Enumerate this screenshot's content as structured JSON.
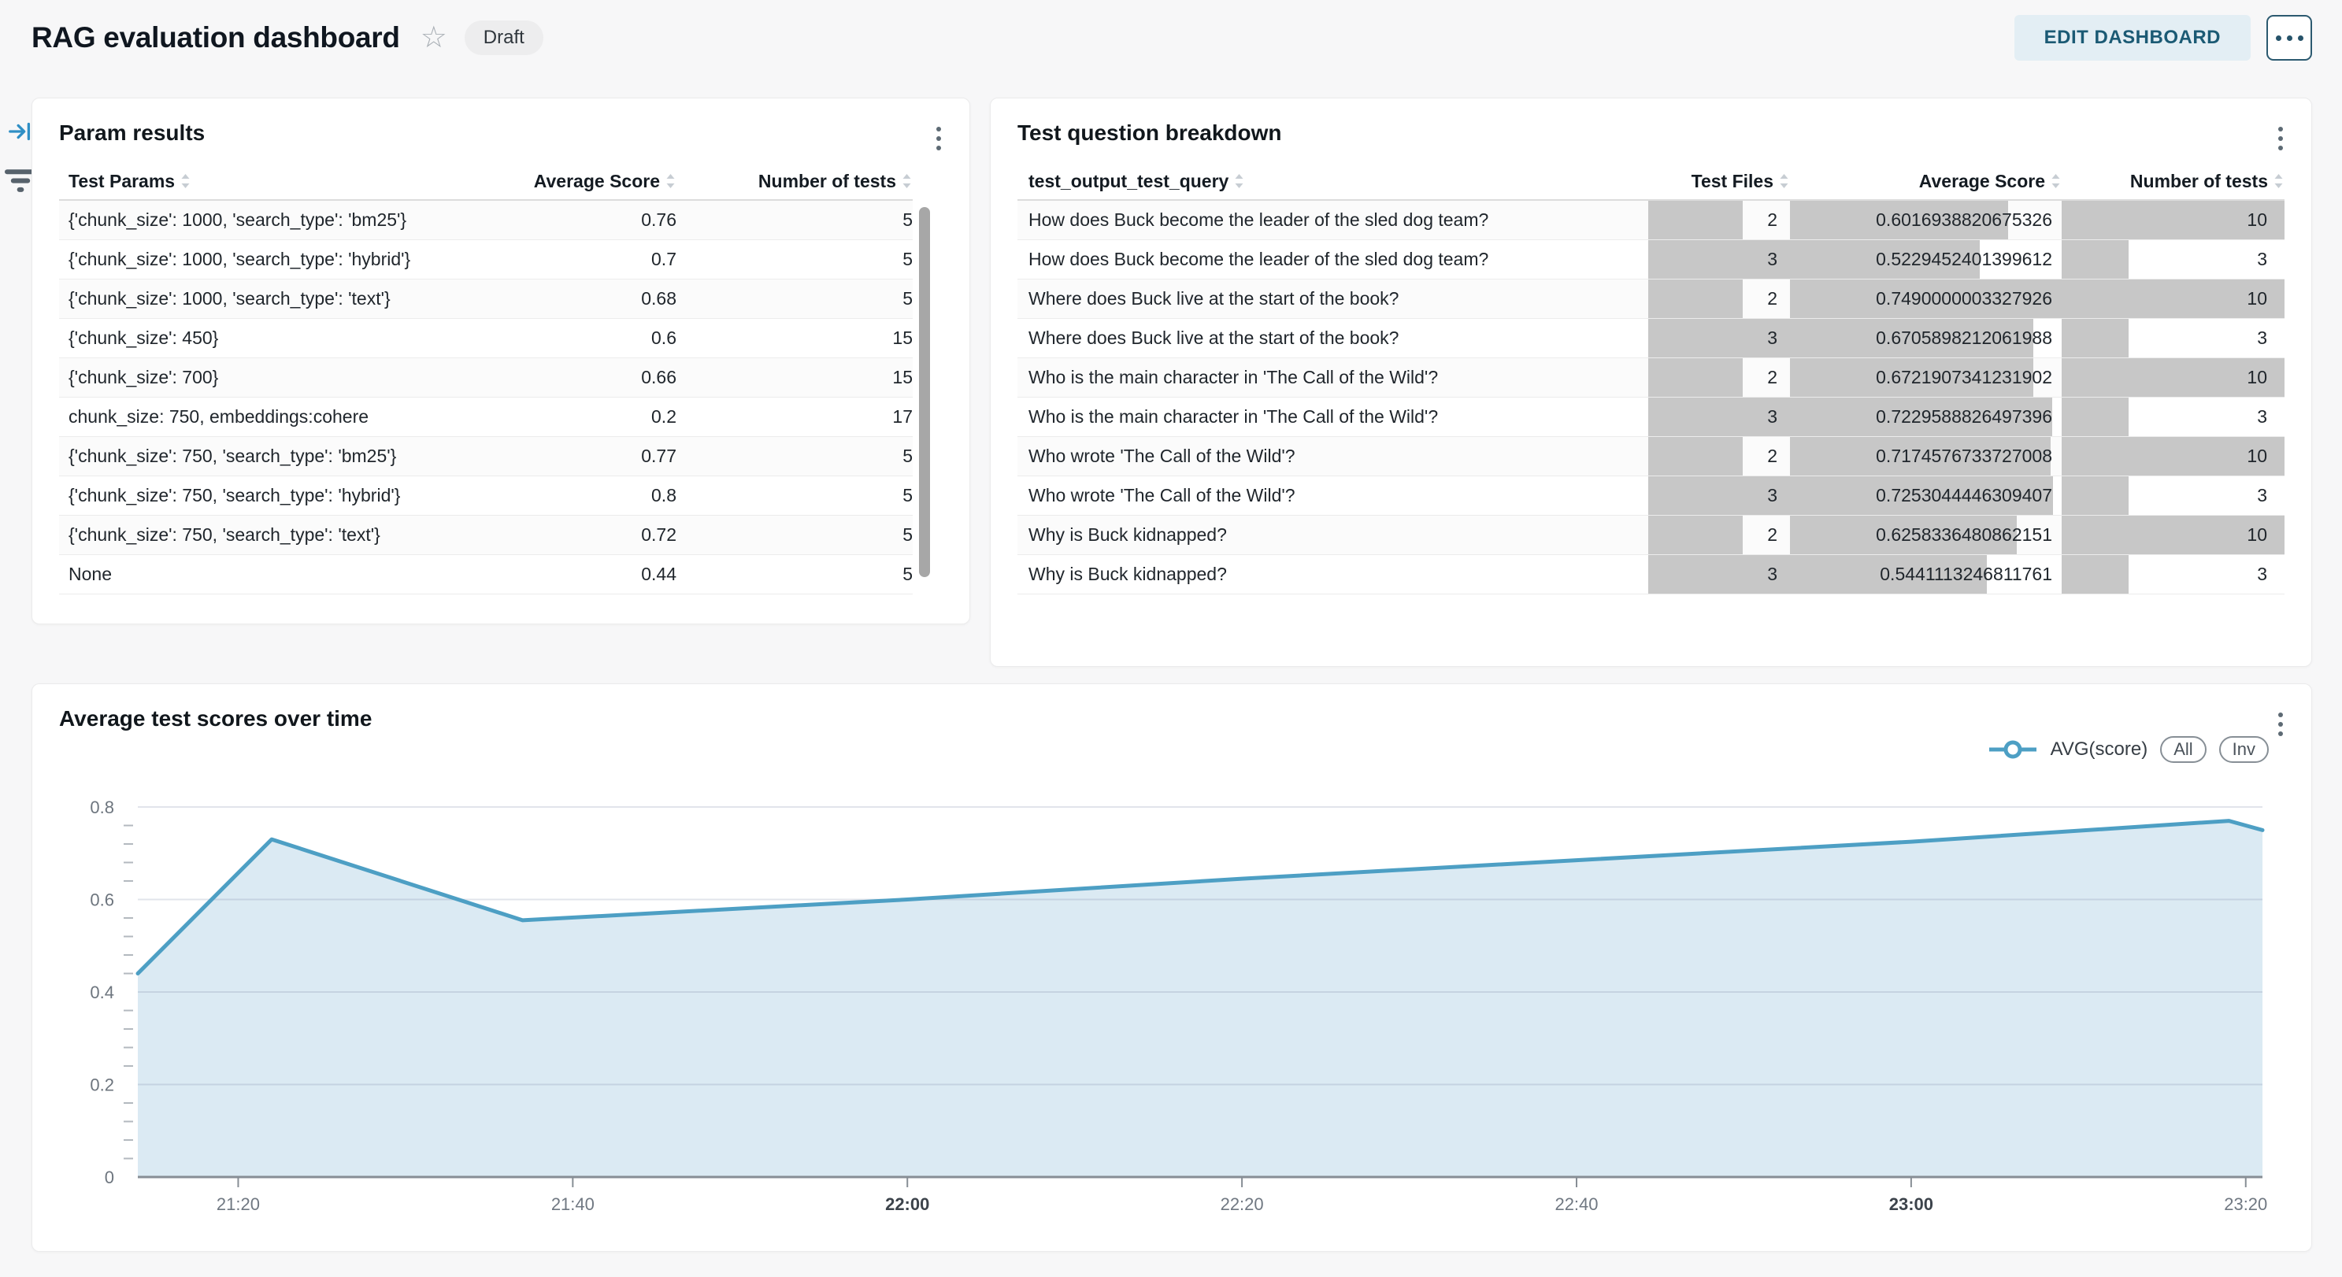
{
  "header": {
    "title": "RAG evaluation dashboard",
    "status_badge": "Draft",
    "edit_button_label": "EDIT DASHBOARD"
  },
  "icons": {
    "favorite": "star-outline-icon",
    "more": "horizontal-ellipsis-icon",
    "card_menu": "kebab-menu-icon",
    "rail_top": "collapse-panel-arrow-icon",
    "rail_bottom": "filter-icon",
    "column_sort": "sort-arrows-icon",
    "legend_marker": "line-with-circle-marker"
  },
  "colors": {
    "edit_button_bg": "#e3eef4",
    "edit_button_text": "#1b5a74",
    "data_bar": "#c7c7c7",
    "chart_line": "#4d9fc4",
    "chart_fill": "#dbeaf3"
  },
  "param_results": {
    "title": "Param results",
    "columns": [
      "Test Params",
      "Average Score",
      "Number of tests"
    ],
    "rows": [
      [
        "{'chunk_size': 1000, 'search_type': 'bm25'}",
        "0.76",
        "5"
      ],
      [
        "{'chunk_size': 1000, 'search_type': 'hybrid'}",
        "0.7",
        "5"
      ],
      [
        "{'chunk_size': 1000, 'search_type': 'text'}",
        "0.68",
        "5"
      ],
      [
        "{'chunk_size': 450}",
        "0.6",
        "15"
      ],
      [
        "{'chunk_size': 700}",
        "0.66",
        "15"
      ],
      [
        "chunk_size: 750, embeddings:cohere",
        "0.2",
        "17"
      ],
      [
        "{'chunk_size': 750, 'search_type': 'bm25'}",
        "0.77",
        "5"
      ],
      [
        "{'chunk_size': 750, 'search_type': 'hybrid'}",
        "0.8",
        "5"
      ],
      [
        "{'chunk_size': 750, 'search_type': 'text'}",
        "0.72",
        "5"
      ],
      [
        "None",
        "0.44",
        "5"
      ]
    ]
  },
  "breakdown": {
    "title": "Test question breakdown",
    "columns": [
      "test_output_test_query",
      "Test Files",
      "Average Score",
      "Number of tests"
    ],
    "rows": [
      {
        "query": "How does Buck become the leader of the sled dog team?",
        "test_files": "2",
        "avg_score": "0.6016938820675326",
        "num_tests": "10"
      },
      {
        "query": "How does Buck become the leader of the sled dog team?",
        "test_files": "3",
        "avg_score": "0.5229452401399612",
        "num_tests": "3"
      },
      {
        "query": "Where does Buck live at the start of the book?",
        "test_files": "2",
        "avg_score": "0.7490000003327926",
        "num_tests": "10"
      },
      {
        "query": "Where does Buck live at the start of the book?",
        "test_files": "3",
        "avg_score": "0.6705898212061988",
        "num_tests": "3"
      },
      {
        "query": "Who is the main character in 'The Call of the Wild'?",
        "test_files": "2",
        "avg_score": "0.6721907341231902",
        "num_tests": "10"
      },
      {
        "query": "Who is the main character in 'The Call of the Wild'?",
        "test_files": "3",
        "avg_score": "0.7229588826497396",
        "num_tests": "3"
      },
      {
        "query": "Who wrote 'The Call of the Wild'?",
        "test_files": "2",
        "avg_score": "0.7174576733727008",
        "num_tests": "10"
      },
      {
        "query": "Who wrote 'The Call of the Wild'?",
        "test_files": "3",
        "avg_score": "0.7253044446309407",
        "num_tests": "3"
      },
      {
        "query": "Why is Buck kidnapped?",
        "test_files": "2",
        "avg_score": "0.6258336480862151",
        "num_tests": "10"
      },
      {
        "query": "Why is Buck kidnapped?",
        "test_files": "3",
        "avg_score": "0.5441113246811761",
        "num_tests": "3"
      }
    ]
  },
  "chart_data": {
    "type": "area",
    "title": "Average test scores over time",
    "series": [
      {
        "name": "AVG(score)",
        "points": [
          {
            "x": "21:14",
            "y": 0.44
          },
          {
            "x": "21:22",
            "y": 0.73
          },
          {
            "x": "21:37",
            "y": 0.555
          },
          {
            "x": "22:00",
            "y": 0.6
          },
          {
            "x": "22:20",
            "y": 0.645
          },
          {
            "x": "22:40",
            "y": 0.685
          },
          {
            "x": "23:00",
            "y": 0.725
          },
          {
            "x": "23:19",
            "y": 0.77
          },
          {
            "x": "23:21",
            "y": 0.75
          }
        ]
      }
    ],
    "x_ticks": [
      "21:20",
      "21:40",
      "22:00",
      "22:20",
      "22:40",
      "23:00",
      "23:20"
    ],
    "x_bold_ticks": [
      "22:00",
      "23:00"
    ],
    "y_ticks": [
      0,
      0.2,
      0.4,
      0.6,
      0.8
    ],
    "ylim": [
      0,
      0.8
    ],
    "x_range": [
      "21:14",
      "23:21"
    ],
    "minor_y_step": 0.04,
    "grid": true,
    "legend_position": "top-right",
    "legend_buttons": [
      "All",
      "Inv"
    ],
    "line_color": "#4d9fc4",
    "fill_color": "#dbeaf3"
  }
}
